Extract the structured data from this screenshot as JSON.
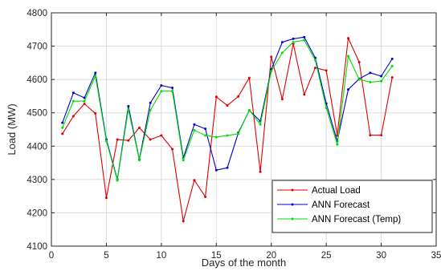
{
  "chart_data": {
    "type": "line",
    "xlabel": "Days of the month",
    "ylabel": "Load (MW)",
    "xlim": [
      0,
      35
    ],
    "ylim": [
      4100,
      4800
    ],
    "xticks": [
      0,
      5,
      10,
      15,
      20,
      25,
      30,
      35
    ],
    "yticks": [
      4100,
      4200,
      4300,
      4400,
      4500,
      4600,
      4700,
      4800
    ],
    "grid": true,
    "legend_position": "bottom-right",
    "series": [
      {
        "name": "Actual Load",
        "color": "#e00000",
        "x": [
          1,
          2,
          3,
          4,
          5,
          6,
          7,
          8,
          9,
          10,
          11,
          12,
          13,
          14,
          15,
          16,
          17,
          18,
          19,
          20,
          21,
          22,
          23,
          24,
          25,
          26,
          27,
          28,
          29,
          30,
          31
        ],
        "values": [
          4437,
          4490,
          4527,
          4498,
          4245,
          4420,
          4417,
          4455,
          4420,
          4432,
          4391,
          4175,
          4298,
          4248,
          4548,
          4522,
          4549,
          4605,
          4323,
          4668,
          4541,
          4707,
          4555,
          4635,
          4627,
          4432,
          4724,
          4652,
          4433,
          4433,
          4606
        ]
      },
      {
        "name": "ANN Forecast",
        "color": "#0000d0",
        "x": [
          1,
          2,
          3,
          4,
          5,
          6,
          7,
          8,
          9,
          10,
          11,
          12,
          13,
          14,
          15,
          16,
          17,
          18,
          19,
          20,
          21,
          22,
          23,
          24,
          25,
          26,
          27,
          28,
          29,
          30,
          31
        ],
        "values": [
          4470,
          4560,
          4545,
          4620,
          4420,
          4300,
          4520,
          4360,
          4530,
          4582,
          4575,
          4365,
          4465,
          4452,
          4328,
          4335,
          4440,
          4507,
          4475,
          4630,
          4712,
          4722,
          4727,
          4665,
          4528,
          4415,
          4570,
          4602,
          4620,
          4610,
          4662
        ]
      },
      {
        "name": "ANN Forecast (Temp)",
        "color": "#00e000",
        "x": [
          1,
          2,
          3,
          4,
          5,
          6,
          7,
          8,
          9,
          10,
          11,
          12,
          13,
          14,
          15,
          16,
          17,
          18,
          19,
          20,
          21,
          22,
          23,
          24,
          25,
          26,
          27,
          28,
          29,
          30,
          31
        ],
        "values": [
          4455,
          4535,
          4535,
          4610,
          4415,
          4297,
          4510,
          4358,
          4508,
          4565,
          4565,
          4358,
          4448,
          4432,
          4427,
          4432,
          4437,
          4508,
          4465,
          4625,
          4680,
          4712,
          4718,
          4658,
          4515,
          4405,
          4670,
          4600,
          4592,
          4595,
          4640
        ]
      }
    ]
  }
}
